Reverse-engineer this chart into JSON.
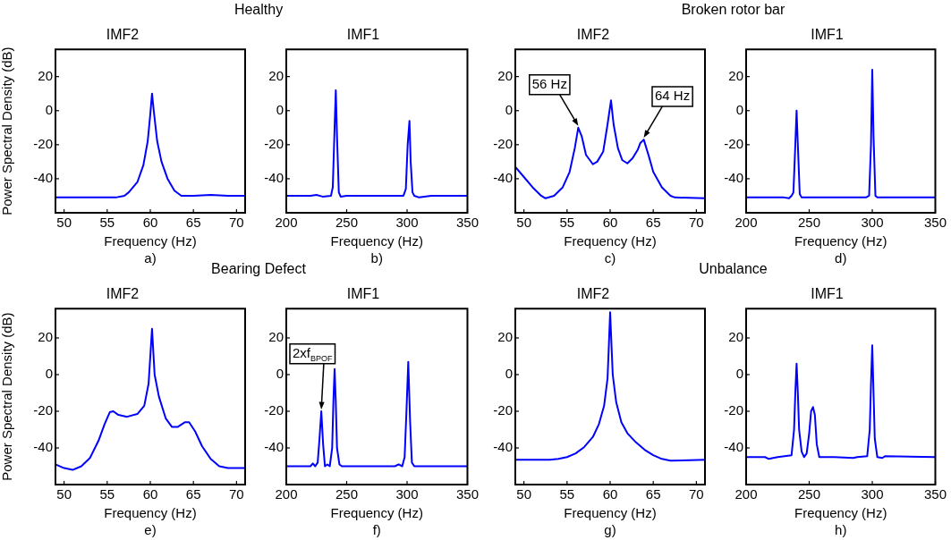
{
  "chart_data": [
    {
      "type": "line",
      "title": "Healthy",
      "subtitle": "IMF2",
      "xlabel": "Frequency (Hz)",
      "ylabel": "Power Spectral Density (dB)",
      "color": "#0000ff",
      "marker": "none",
      "grid": false,
      "legend": false,
      "xlim": [
        49,
        71
      ],
      "ylim": [
        -60,
        36
      ],
      "xticks": [
        50,
        55,
        60,
        65,
        70
      ],
      "yticks": [
        -40,
        -20,
        0,
        20
      ],
      "annotations": [
        "a)"
      ],
      "x": [
        49,
        51,
        53,
        55,
        56,
        57,
        57.5,
        58.5,
        59.2,
        59.7,
        60,
        60.2,
        60.4,
        60.8,
        61.3,
        62,
        62.8,
        63.6,
        65,
        67,
        69,
        71
      ],
      "values": [
        -51,
        -51,
        -51,
        -51,
        -51,
        -50,
        -48,
        -42,
        -32,
        -18,
        -2,
        10,
        0,
        -18,
        -30,
        -40,
        -47,
        -50,
        -50,
        -49.5,
        -50,
        -50
      ]
    },
    {
      "type": "line",
      "subtitle": "IMF1",
      "xlabel": "Frequency (Hz)",
      "color": "#0000ff",
      "marker": "none",
      "grid": false,
      "legend": false,
      "xlim": [
        200,
        350
      ],
      "ylim": [
        -60,
        36
      ],
      "xticks": [
        200,
        250,
        300,
        350
      ],
      "yticks": [
        -40,
        -20,
        0,
        20
      ],
      "annotations": [
        "b)"
      ],
      "x": [
        200,
        220,
        225,
        230,
        237,
        238.5,
        240,
        241,
        242,
        243.5,
        245,
        250,
        260,
        280,
        290,
        297,
        299,
        300.5,
        302,
        303,
        304.5,
        306,
        310,
        320,
        350
      ],
      "values": [
        -50,
        -50,
        -49.5,
        -50.5,
        -50,
        -45,
        -10,
        12,
        -15,
        -48,
        -50.5,
        -50,
        -50,
        -50,
        -50,
        -50,
        -46,
        -20,
        -6,
        -30,
        -48,
        -50,
        -51,
        -50,
        -50
      ]
    },
    {
      "type": "line",
      "title": "Broken rotor bar",
      "subtitle": "IMF2",
      "xlabel": "Frequency (Hz)",
      "color": "#0000ff",
      "marker": "none",
      "grid": false,
      "legend": false,
      "xlim": [
        49,
        71
      ],
      "ylim": [
        -60,
        36
      ],
      "xticks": [
        50,
        55,
        60,
        65,
        70
      ],
      "yticks": [
        -40,
        -20,
        0,
        20
      ],
      "annotations": [
        "c)",
        {
          "text": "56 Hz",
          "x": 56.3,
          "y": -10
        },
        {
          "text": "64 Hz",
          "x": 63.9,
          "y": -17
        }
      ],
      "x": [
        49,
        50,
        51,
        52,
        52.5,
        53.5,
        54.5,
        55.3,
        55.9,
        56.3,
        56.7,
        57.2,
        58,
        58.5,
        59.2,
        59.7,
        60.1,
        60.4,
        60.9,
        61.4,
        62,
        62.6,
        63.2,
        63.5,
        63.9,
        64.5,
        65,
        66,
        67,
        67.5,
        71
      ],
      "values": [
        -33,
        -39,
        -45,
        -50,
        -51.5,
        -50,
        -45,
        -36,
        -22,
        -10,
        -15,
        -26,
        -31.5,
        -30,
        -24,
        -8,
        6,
        -8,
        -22,
        -29,
        -31,
        -28,
        -23,
        -19,
        -17,
        -27,
        -36,
        -45,
        -50,
        -51,
        -51.5
      ]
    },
    {
      "type": "line",
      "subtitle": "IMF1",
      "xlabel": "Frequency (Hz)",
      "color": "#0000ff",
      "marker": "none",
      "grid": false,
      "legend": false,
      "xlim": [
        200,
        350
      ],
      "ylim": [
        -60,
        36
      ],
      "xticks": [
        200,
        250,
        300,
        350
      ],
      "yticks": [
        -40,
        -20,
        0,
        20
      ],
      "annotations": [
        "d)"
      ],
      "x": [
        200,
        230,
        234,
        236,
        237.5,
        239,
        240,
        241,
        242.5,
        244,
        250,
        280,
        295,
        297.5,
        299,
        300,
        301,
        302.5,
        304,
        320,
        350
      ],
      "values": [
        -51,
        -51,
        -51.5,
        -50,
        -48,
        -20,
        0,
        -20,
        -49,
        -51,
        -51,
        -51,
        -51,
        -50,
        -20,
        24,
        -15,
        -50,
        -51,
        -51,
        -51
      ]
    },
    {
      "type": "line",
      "title": "Bearing Defect",
      "subtitle": "IMF2",
      "xlabel": "Frequency (Hz)",
      "ylabel": "Power Spectral Density (dB)",
      "color": "#0000ff",
      "marker": "none",
      "grid": false,
      "legend": false,
      "xlim": [
        49,
        71
      ],
      "ylim": [
        -60,
        36
      ],
      "xticks": [
        50,
        55,
        60,
        65,
        70
      ],
      "yticks": [
        -40,
        -20,
        0,
        20
      ],
      "annotations": [
        "e)"
      ],
      "x": [
        49,
        50,
        51,
        52,
        53,
        54,
        54.7,
        55.3,
        55.7,
        56.3,
        57.3,
        58.5,
        59.3,
        59.8,
        60.2,
        60.5,
        61,
        61.8,
        62.5,
        63.2,
        64,
        64.5,
        65.2,
        66,
        67,
        68,
        69,
        71
      ],
      "values": [
        -49,
        -51,
        -52,
        -50,
        -45.5,
        -36,
        -27,
        -20.5,
        -20,
        -22,
        -23,
        -21.5,
        -17,
        -5,
        25,
        0,
        -12,
        -24,
        -28.5,
        -28.5,
        -26,
        -26,
        -31,
        -39,
        -46,
        -50,
        -51,
        -51
      ]
    },
    {
      "type": "line",
      "subtitle": "IMF1",
      "xlabel": "Frequency (Hz)",
      "color": "#0000ff",
      "marker": "none",
      "grid": false,
      "legend": false,
      "xlim": [
        200,
        350
      ],
      "ylim": [
        -60,
        36
      ],
      "xticks": [
        200,
        250,
        300,
        350
      ],
      "yticks": [
        -40,
        -20,
        0,
        20
      ],
      "annotations": [
        "f)",
        {
          "text": "2xf$_{BPOF}$",
          "x": 229,
          "y": -20
        }
      ],
      "x": [
        200,
        220,
        222,
        224,
        226,
        227.5,
        229,
        230.5,
        232,
        234,
        236,
        238,
        239,
        240,
        241,
        242,
        244,
        246,
        260,
        290,
        293,
        296,
        298,
        299.5,
        301,
        302.5,
        304,
        306,
        350
      ],
      "values": [
        -50,
        -50,
        -48.5,
        -50,
        -48,
        -35,
        -20,
        -38,
        -50,
        -49,
        -50,
        -40,
        -15,
        3,
        -15,
        -40,
        -49,
        -50,
        -50,
        -50,
        -49,
        -50,
        -45,
        -20,
        7,
        -25,
        -48,
        -50,
        -50
      ]
    },
    {
      "type": "line",
      "title": "Unbalance",
      "subtitle": "IMF2",
      "xlabel": "Frequency (Hz)",
      "color": "#0000ff",
      "marker": "none",
      "grid": false,
      "legend": false,
      "xlim": [
        49,
        71
      ],
      "ylim": [
        -60,
        36
      ],
      "xticks": [
        50,
        55,
        60,
        65,
        70
      ],
      "yticks": [
        -40,
        -20,
        0,
        20
      ],
      "annotations": [
        "g)"
      ],
      "x": [
        49,
        53,
        54,
        55,
        56,
        57,
        58,
        58.7,
        59.3,
        59.7,
        60,
        60.3,
        60.7,
        61.3,
        62,
        63,
        64,
        65,
        66,
        67,
        71
      ],
      "values": [
        -46.5,
        -46.5,
        -46,
        -45,
        -43,
        -39.5,
        -34,
        -27,
        -17,
        -2,
        34,
        0,
        -15,
        -26,
        -32,
        -37,
        -41,
        -44,
        -46,
        -47,
        -46.5
      ]
    },
    {
      "type": "line",
      "subtitle": "IMF1",
      "xlabel": "Frequency (Hz)",
      "color": "#0000ff",
      "marker": "none",
      "grid": false,
      "legend": false,
      "xlim": [
        200,
        350
      ],
      "ylim": [
        -60,
        36
      ],
      "xticks": [
        200,
        250,
        300,
        350
      ],
      "yticks": [
        -40,
        -20,
        0,
        20
      ],
      "annotations": [
        "h)"
      ],
      "x": [
        200,
        215,
        218,
        225,
        236,
        238,
        239,
        240,
        241,
        242,
        244,
        246,
        248,
        250,
        251.5,
        253,
        254.5,
        256,
        258,
        270,
        285,
        288,
        296,
        298,
        299,
        300,
        301,
        302,
        304,
        308,
        310,
        350
      ],
      "values": [
        -45,
        -45,
        -46,
        -45,
        -44,
        -30,
        -10,
        6,
        -10,
        -30,
        -42,
        -45,
        -43,
        -32,
        -20,
        -17.7,
        -22,
        -38,
        -45,
        -45,
        -45.5,
        -45,
        -44.5,
        -30,
        -5,
        16,
        -10,
        -35,
        -45,
        -45.5,
        -44.5,
        -45
      ]
    }
  ]
}
